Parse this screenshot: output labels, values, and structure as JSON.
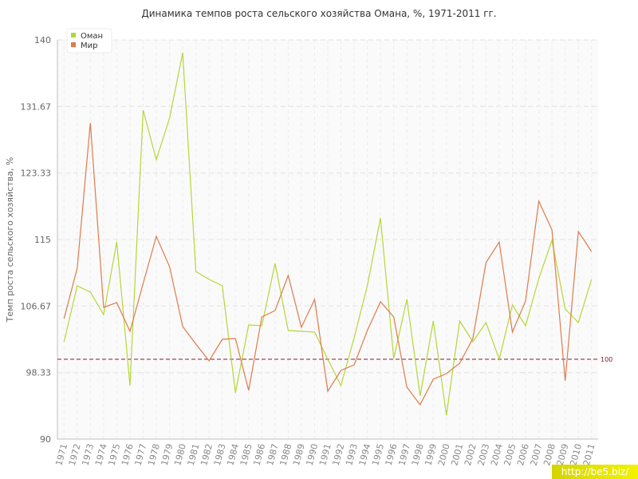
{
  "chart_data": {
    "type": "line",
    "title": "Динамика темпов роста сельского хозяйства Омана, %, 1971-2011 гг.",
    "xlabel": "",
    "ylabel": "Темп роста сельского хозяйства, %",
    "ylim": [
      90,
      140
    ],
    "y_ticks": [
      "90",
      "98.33",
      "106.67",
      "115",
      "123.33",
      "131.67",
      "140"
    ],
    "grid": true,
    "legend_position": "top-left",
    "categories": [
      "1971",
      "1972",
      "1973",
      "1974",
      "1975",
      "1976",
      "1977",
      "1978",
      "1979",
      "1980",
      "1981",
      "1982",
      "1983",
      "1984",
      "1985",
      "1986",
      "1987",
      "1988",
      "1989",
      "1990",
      "1991",
      "1992",
      "1993",
      "1994",
      "1995",
      "1996",
      "1997",
      "1998",
      "1999",
      "2000",
      "2001",
      "2002",
      "2003",
      "2004",
      "2005",
      "2006",
      "2007",
      "2008",
      "2009",
      "2010",
      "2011"
    ],
    "series": [
      {
        "name": "Оман",
        "color": "#b5d638",
        "values": [
          102.2,
          109.2,
          108.4,
          105.6,
          114.7,
          96.7,
          131.2,
          125.0,
          130.2,
          138.4,
          111.0,
          110.0,
          109.2,
          95.8,
          104.3,
          104.2,
          112.0,
          103.6,
          103.5,
          103.4,
          100.0,
          96.7,
          102.7,
          109.2,
          117.7,
          100.1,
          107.5,
          95.4,
          104.8,
          93.0,
          104.8,
          102.2,
          104.6,
          100.0,
          106.8,
          104.2,
          110.1,
          114.9,
          106.3,
          104.6,
          110.0
        ]
      },
      {
        "name": "Мир",
        "color": "#e07a4a",
        "values": [
          105.1,
          111.4,
          129.6,
          106.5,
          107.1,
          103.5,
          109.5,
          115.4,
          111.6,
          104.1,
          101.9,
          99.8,
          102.5,
          102.6,
          96.1,
          105.3,
          106.1,
          110.5,
          104.0,
          107.5,
          96.0,
          98.6,
          99.3,
          103.6,
          107.2,
          105.3,
          96.5,
          94.3,
          97.5,
          98.2,
          99.5,
          102.6,
          112.1,
          114.7,
          103.4,
          107.3,
          119.8,
          116.2,
          97.3,
          116.0,
          113.5
        ]
      }
    ],
    "reference_line": {
      "value": 100,
      "label": "100",
      "color": "#8b1a2e"
    }
  },
  "watermark": "http://be5.biz/"
}
